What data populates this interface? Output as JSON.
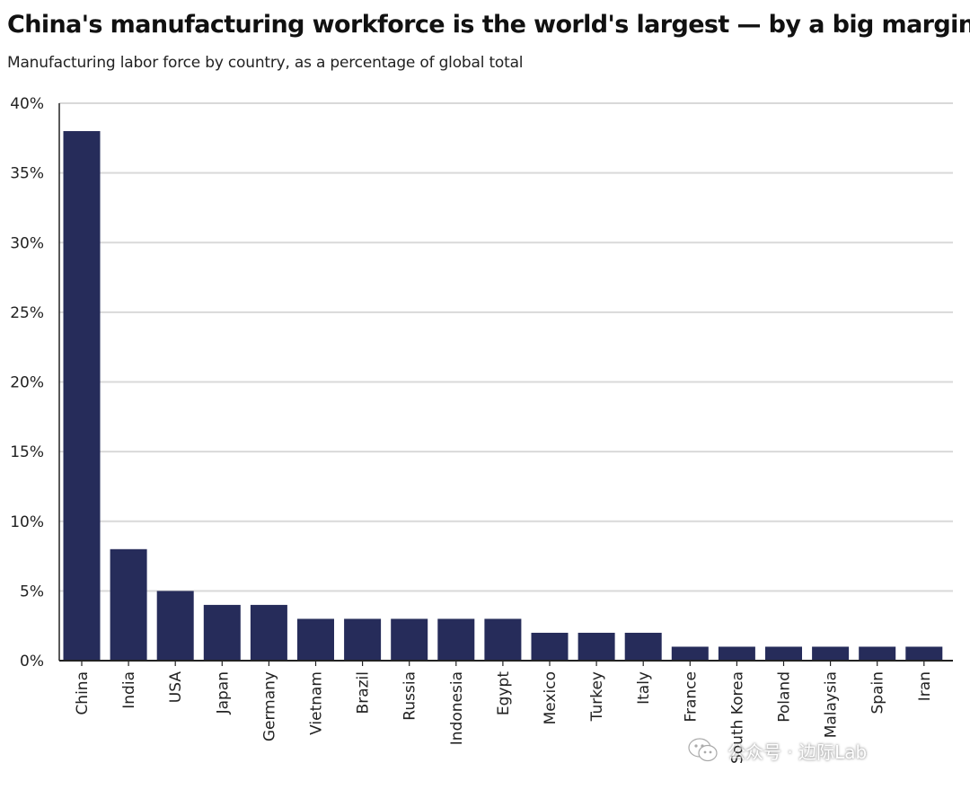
{
  "chart_data": {
    "type": "bar",
    "title": "China's manufacturing workforce is the world's largest — by a big margin",
    "subtitle": "Manufacturing labor force by country, as a percentage of global total",
    "categories": [
      "China",
      "India",
      "USA",
      "Japan",
      "Germany",
      "Vietnam",
      "Brazil",
      "Russia",
      "Indonesia",
      "Egypt",
      "Mexico",
      "Turkey",
      "Italy",
      "France",
      "South Korea",
      "Poland",
      "Malaysia",
      "Spain",
      "Iran"
    ],
    "values": [
      38,
      8,
      5,
      4,
      4,
      3,
      3,
      3,
      3,
      3,
      2,
      2,
      2,
      1,
      1,
      1,
      1,
      1,
      1
    ],
    "yticks": [
      "0%",
      "5%",
      "10%",
      "15%",
      "20%",
      "25%",
      "30%",
      "35%",
      "40%"
    ],
    "ylim": [
      0,
      40
    ],
    "grid": true,
    "bar_color": "#262c5a",
    "grid_color": "#d9d9d9"
  },
  "watermark": {
    "text": "公众号 · 边际Lab",
    "icon": "wechat-icon"
  }
}
